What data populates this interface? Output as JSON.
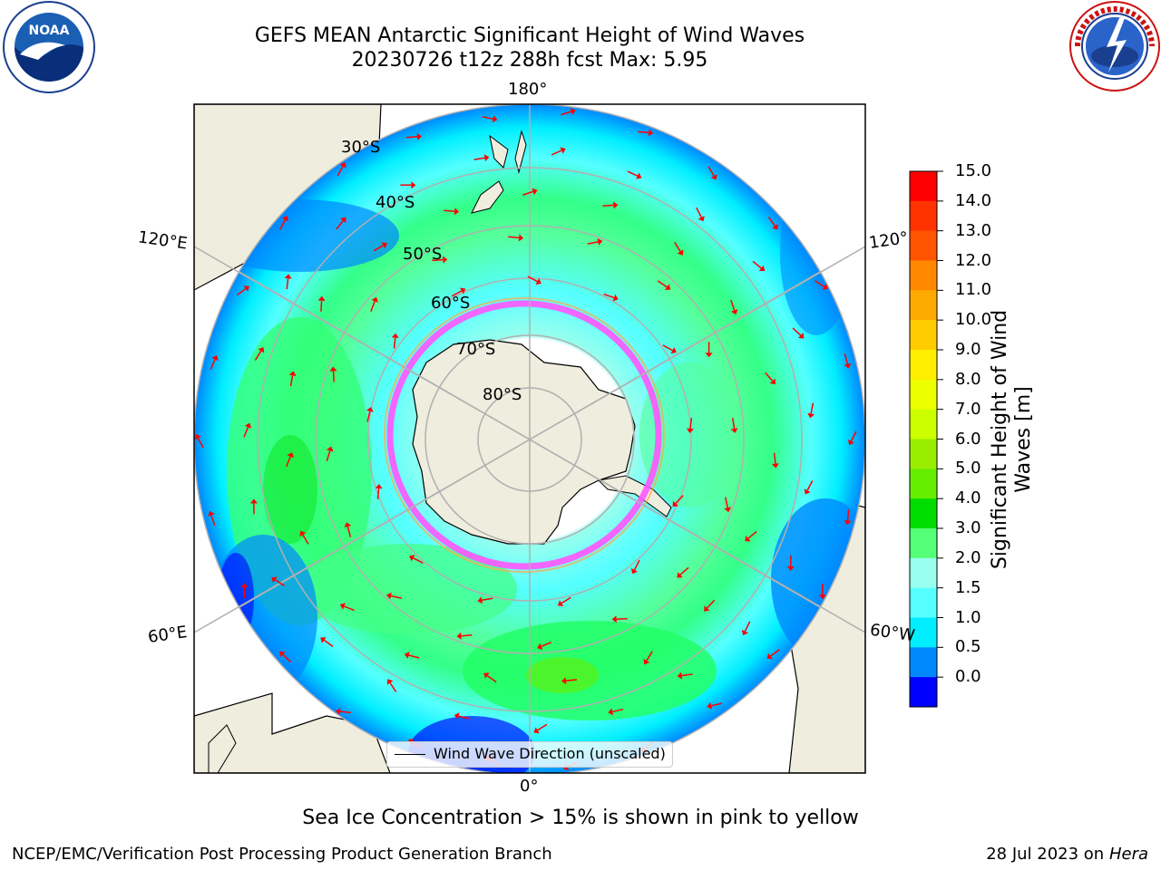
{
  "header": {
    "title_line1": "GEFS MEAN Antarctic Significant Height of Wind Waves",
    "title_line2": "20230726 t12z 288h fcst   Max: 5.95"
  },
  "logos": {
    "left": {
      "icon": "noaa-logo",
      "text": "NOAA",
      "ring_text": "NATIONAL OCEANIC AND ATMOSPHERIC ADMINISTRATION · U.S. DEPARTMENT OF COMMERCE"
    },
    "right": {
      "icon": "national-weather-service-logo",
      "ring_text": "NATIONAL WEATHER SERVICE"
    }
  },
  "map": {
    "projection": "south-polar-stereographic",
    "longitude_labels": {
      "top": "180°",
      "bottom": "0°",
      "left_upper": "120°E",
      "left_lower": "60°E",
      "right_upper": "120°",
      "right_lower": "60°W"
    },
    "latitude_labels": [
      "30°S",
      "40°S",
      "50°S",
      "60°S",
      "70°S",
      "80°S"
    ],
    "legend": "Wind Wave Direction (unscaled)",
    "arrow_color": "#ff0000",
    "land_color": "#efedde",
    "sea_ice_colors": [
      "#ff55ff",
      "#ffaa44",
      "#ffee00"
    ]
  },
  "colorbar": {
    "label_line1": "Significant Height of Wind",
    "label_line2": "Waves [m]",
    "ticks": [
      "15.0",
      "14.0",
      "13.0",
      "12.0",
      "11.0",
      "10.0",
      "9.0",
      "8.0",
      "7.0",
      "6.0",
      "5.0",
      "4.0",
      "3.0",
      "2.0",
      "1.5",
      "1.0",
      "0.5",
      "0.0"
    ],
    "colors": [
      "#ff0000",
      "#ff3300",
      "#ff5500",
      "#ff8800",
      "#ffaa00",
      "#ffcc00",
      "#ffee00",
      "#eeff00",
      "#ccff00",
      "#99ee00",
      "#66ee00",
      "#00dd00",
      "#55ff77",
      "#99ffee",
      "#55ffff",
      "#00eeff",
      "#0088ff",
      "#0000ff"
    ]
  },
  "caption": "Sea Ice Concentration > 15% is shown in pink to yellow",
  "footer": {
    "left": "NCEP/EMC/Verification Post Processing Product Generation Branch",
    "right_date": "28 Jul 2023 on ",
    "right_host": "Hera"
  }
}
